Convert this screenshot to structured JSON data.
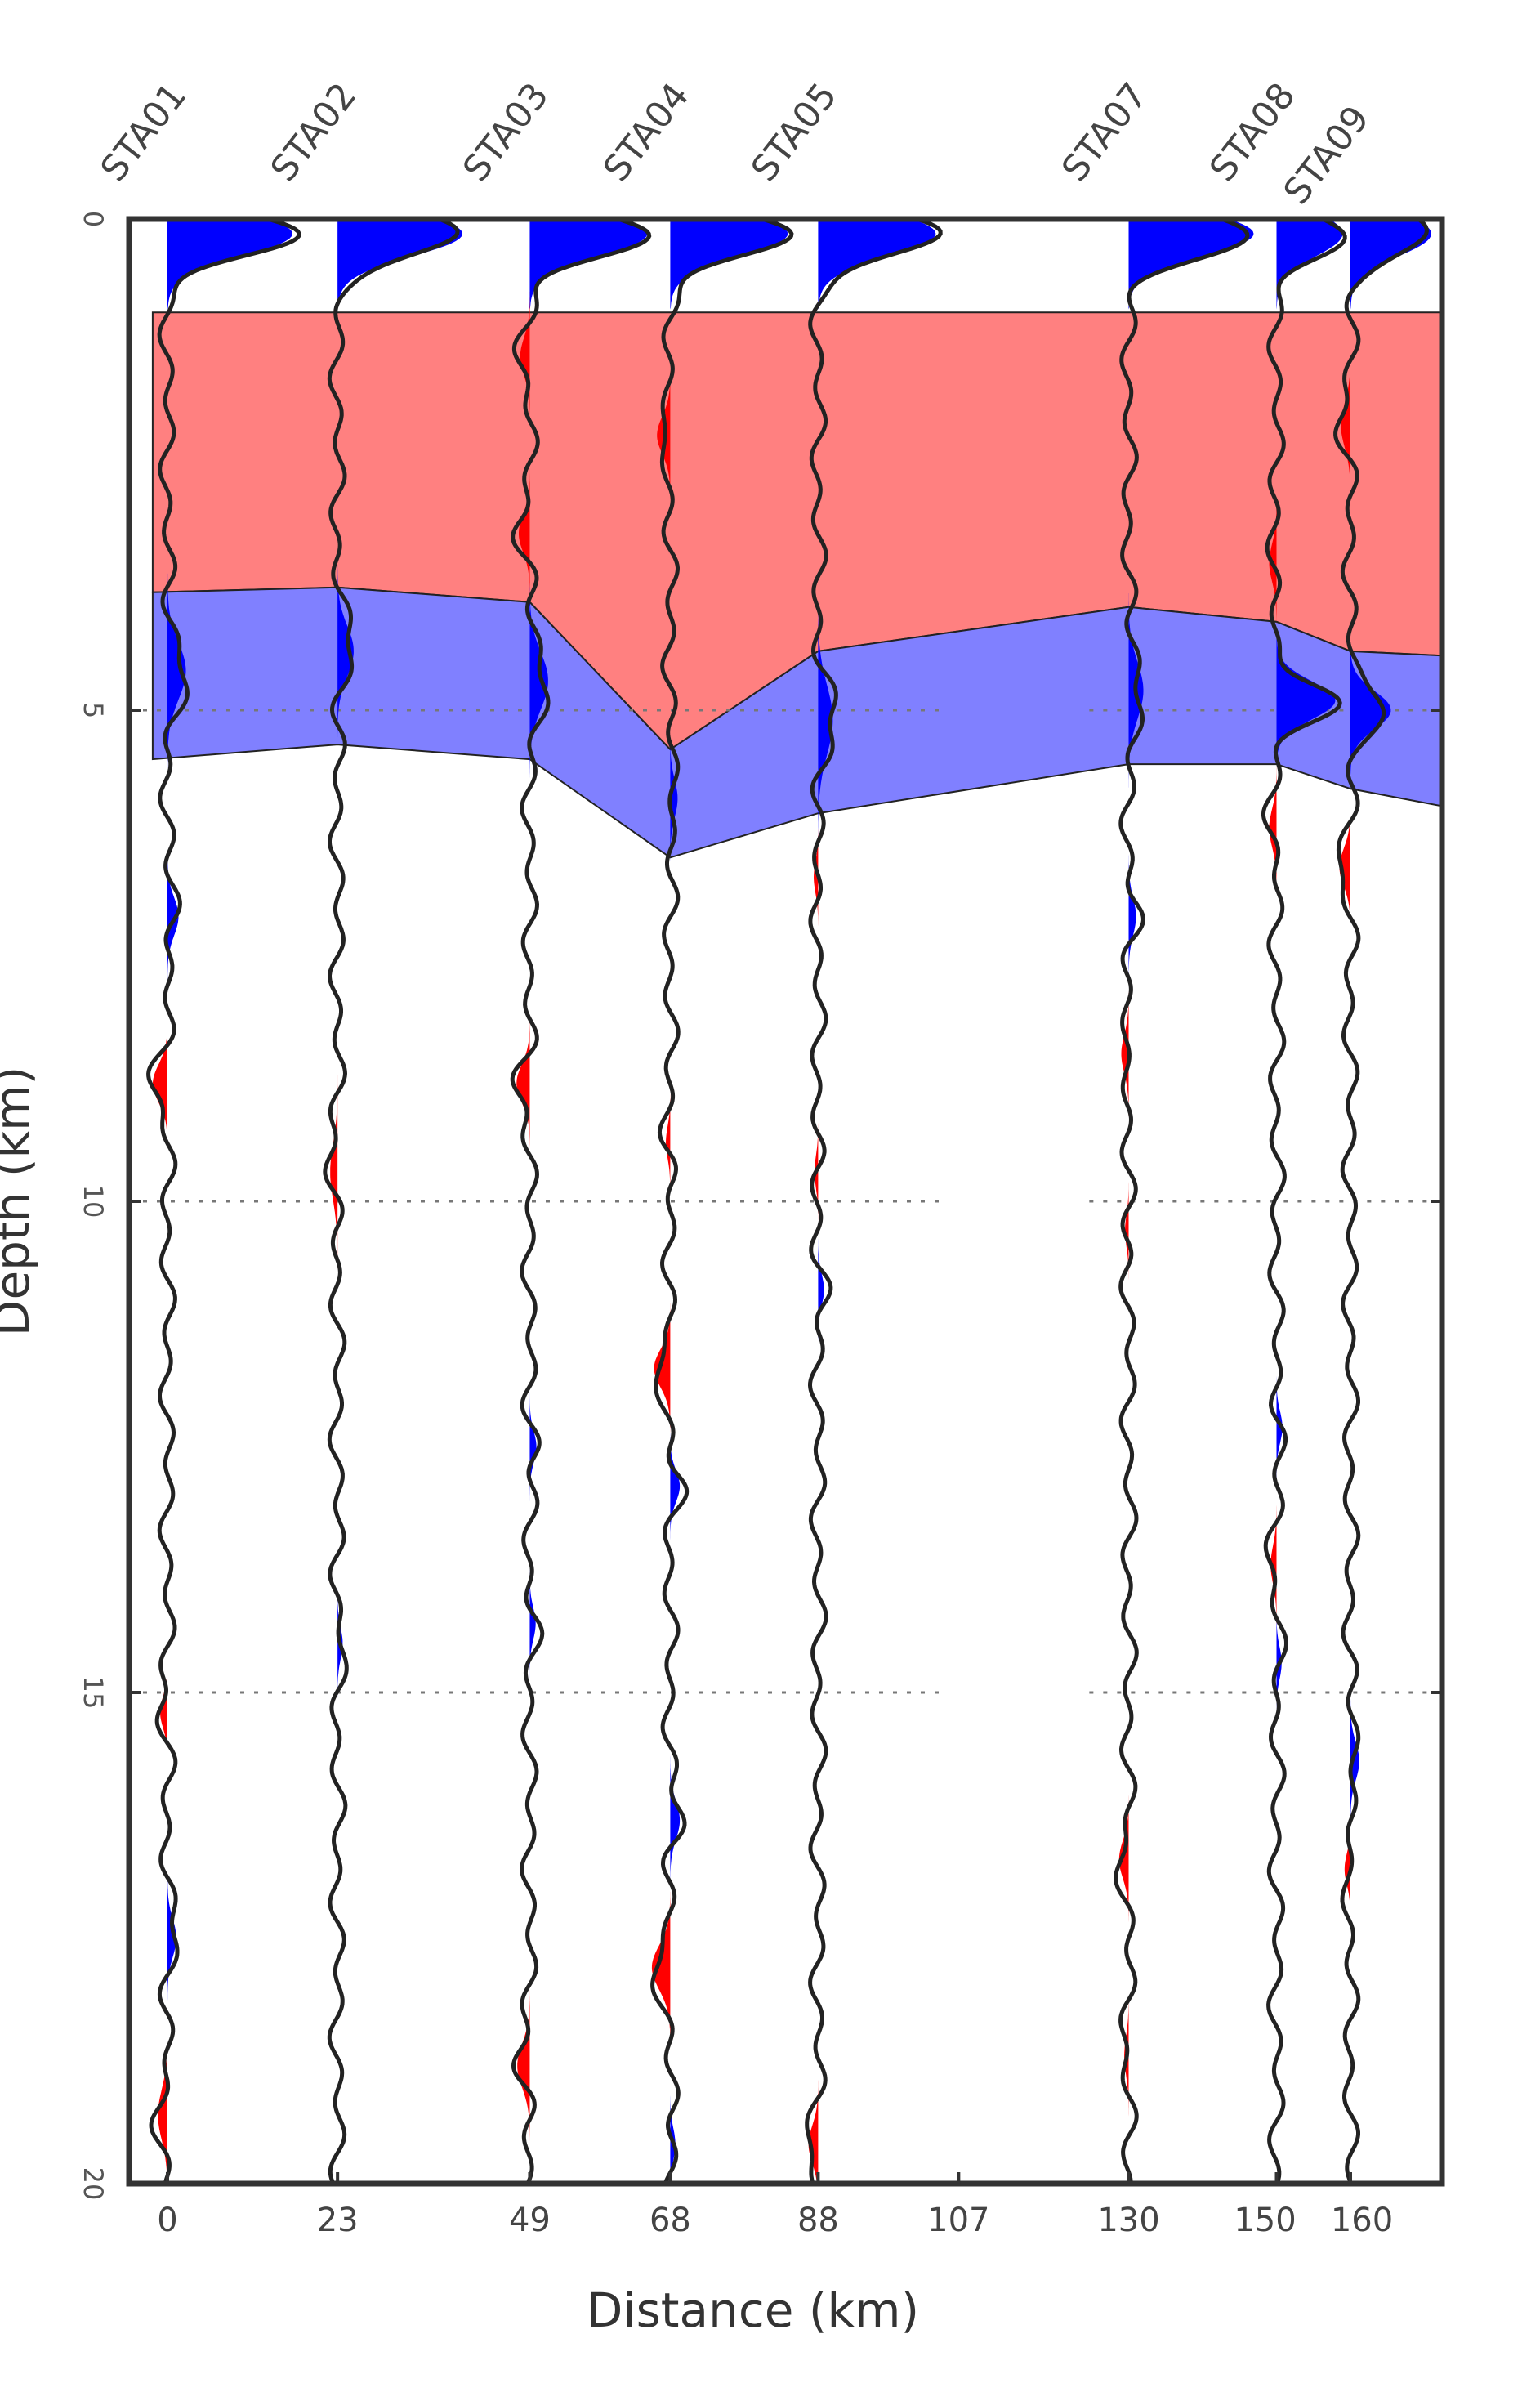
{
  "chart_data": {
    "type": "line",
    "title": "",
    "xlabel": "Distance (km)",
    "ylabel": "Depth (km)",
    "x_ticks": [
      0,
      23,
      49,
      68,
      88,
      107,
      130,
      150,
      160
    ],
    "y_ticks": [
      0,
      5,
      10,
      15,
      20
    ],
    "ylim": [
      0,
      20
    ],
    "y_inverted": true,
    "grid": "horizontal-dotted",
    "stations": [
      {
        "name": "STA01",
        "distance": 0
      },
      {
        "name": "STA02",
        "distance": 23
      },
      {
        "name": "STA03",
        "distance": 49
      },
      {
        "name": "STA04",
        "distance": 68
      },
      {
        "name": "STA05",
        "distance": 88
      },
      {
        "name": "STA07",
        "distance": 130
      },
      {
        "name": "STA08",
        "distance": 150
      },
      {
        "name": "STA09",
        "distance": 160
      }
    ],
    "empty_gap_distance": 107,
    "positive_color": "#0000ff",
    "negative_color": "#ff0000",
    "layers": [
      {
        "name": "",
        "fill": "#ff8080",
        "top": [
          [
            -2,
            0.95
          ],
          [
            188,
            0.95
          ]
        ],
        "bottom": [
          [
            -2,
            3.8
          ],
          [
            23,
            3.75
          ],
          [
            49,
            3.9
          ],
          [
            68,
            5.4
          ],
          [
            88,
            4.4
          ],
          [
            130,
            3.95
          ],
          [
            150,
            4.1
          ],
          [
            160,
            4.4
          ],
          [
            188,
            4.5
          ]
        ]
      },
      {
        "name": "",
        "fill": "#8080ff",
        "top": [
          [
            -2,
            3.8
          ],
          [
            23,
            3.75
          ],
          [
            49,
            3.9
          ],
          [
            68,
            5.4
          ],
          [
            88,
            4.4
          ],
          [
            130,
            3.95
          ],
          [
            150,
            4.1
          ],
          [
            160,
            4.4
          ],
          [
            188,
            4.5
          ]
        ],
        "bottom": [
          [
            -2,
            5.5
          ],
          [
            23,
            5.35
          ],
          [
            49,
            5.5
          ],
          [
            68,
            6.5
          ],
          [
            88,
            6.05
          ],
          [
            130,
            5.55
          ],
          [
            150,
            5.55
          ],
          [
            160,
            5.8
          ],
          [
            188,
            6.2
          ]
        ]
      }
    ],
    "pulses": [
      {
        "station": "STA01",
        "depth": 0.15,
        "amp": 17,
        "width": 0.7
      },
      {
        "station": "STA01",
        "depth": 4.6,
        "amp": 2.5,
        "width": 0.9
      },
      {
        "station": "STA01",
        "depth": 7.1,
        "amp": 1.5,
        "width": 0.6
      },
      {
        "station": "STA01",
        "depth": 8.8,
        "amp": -2,
        "width": 0.6
      },
      {
        "station": "STA01",
        "depth": 15.2,
        "amp": -1,
        "width": 0.5
      },
      {
        "station": "STA01",
        "depth": 17.5,
        "amp": 1.2,
        "width": 0.6
      },
      {
        "station": "STA01",
        "depth": 19.3,
        "amp": -1.3,
        "width": 0.8
      },
      {
        "station": "STA02",
        "depth": 0.15,
        "amp": 17,
        "width": 0.7
      },
      {
        "station": "STA02",
        "depth": 4.4,
        "amp": 2.2,
        "width": 0.8
      },
      {
        "station": "STA02",
        "depth": 9.7,
        "amp": -1,
        "width": 0.9
      },
      {
        "station": "STA02",
        "depth": 14.5,
        "amp": 0.7,
        "width": 0.5
      },
      {
        "station": "STA03",
        "depth": 0.15,
        "amp": 16,
        "width": 0.7
      },
      {
        "station": "STA03",
        "depth": 1.4,
        "amp": -1.3,
        "width": 0.6
      },
      {
        "station": "STA03",
        "depth": 3.2,
        "amp": -1.5,
        "width": 0.6
      },
      {
        "station": "STA03",
        "depth": 4.7,
        "amp": 2.5,
        "width": 0.9
      },
      {
        "station": "STA03",
        "depth": 8.8,
        "amp": -1.8,
        "width": 0.6
      },
      {
        "station": "STA03",
        "depth": 12.5,
        "amp": 0.9,
        "width": 0.5
      },
      {
        "station": "STA03",
        "depth": 14.3,
        "amp": 0.8,
        "width": 0.5
      },
      {
        "station": "STA03",
        "depth": 18.8,
        "amp": -1.7,
        "width": 0.7
      },
      {
        "station": "STA04",
        "depth": 0.15,
        "amp": 16,
        "width": 0.7
      },
      {
        "station": "STA04",
        "depth": 2.2,
        "amp": -1.8,
        "width": 0.6
      },
      {
        "station": "STA04",
        "depth": 5.9,
        "amp": 1,
        "width": 0.6
      },
      {
        "station": "STA04",
        "depth": 9.4,
        "amp": -0.6,
        "width": 0.5
      },
      {
        "station": "STA04",
        "depth": 11.7,
        "amp": -2.2,
        "width": 0.6
      },
      {
        "station": "STA04",
        "depth": 12.9,
        "amp": 1.3,
        "width": 0.5
      },
      {
        "station": "STA04",
        "depth": 16.3,
        "amp": 1.3,
        "width": 0.6
      },
      {
        "station": "STA04",
        "depth": 17.8,
        "amp": -2.5,
        "width": 0.7
      },
      {
        "station": "STA04",
        "depth": 19.6,
        "amp": 0.7,
        "width": 0.5
      },
      {
        "station": "STA05",
        "depth": 0.15,
        "amp": 16,
        "width": 0.7
      },
      {
        "station": "STA05",
        "depth": 5.1,
        "amp": 2,
        "width": 1.1
      },
      {
        "station": "STA05",
        "depth": 6.7,
        "amp": -0.6,
        "width": 0.5
      },
      {
        "station": "STA05",
        "depth": 9.7,
        "amp": -0.5,
        "width": 0.5
      },
      {
        "station": "STA05",
        "depth": 10.9,
        "amp": 0.8,
        "width": 0.5
      },
      {
        "station": "STA05",
        "depth": 19.6,
        "amp": -1.3,
        "width": 0.6
      },
      {
        "station": "STA07",
        "depth": 0.15,
        "amp": 17,
        "width": 0.7
      },
      {
        "station": "STA07",
        "depth": 4.8,
        "amp": 2,
        "width": 0.9
      },
      {
        "station": "STA07",
        "depth": 7.1,
        "amp": 1,
        "width": 0.6
      },
      {
        "station": "STA07",
        "depth": 8.5,
        "amp": -1,
        "width": 0.6
      },
      {
        "station": "STA07",
        "depth": 10.3,
        "amp": -0.5,
        "width": 0.5
      },
      {
        "station": "STA07",
        "depth": 16.7,
        "amp": -1.3,
        "width": 0.6
      },
      {
        "station": "STA07",
        "depth": 18.7,
        "amp": -0.6,
        "width": 0.6
      },
      {
        "station": "STA08",
        "depth": 0.15,
        "amp": 9,
        "width": 0.7
      },
      {
        "station": "STA08",
        "depth": 3.5,
        "amp": -1,
        "width": 0.6
      },
      {
        "station": "STA08",
        "depth": 4.9,
        "amp": 8,
        "width": 0.6
      },
      {
        "station": "STA08",
        "depth": 6.2,
        "amp": -1,
        "width": 0.6
      },
      {
        "station": "STA08",
        "depth": 12.3,
        "amp": 0.8,
        "width": 0.5
      },
      {
        "station": "STA08",
        "depth": 13.7,
        "amp": -0.8,
        "width": 0.6
      },
      {
        "station": "STA08",
        "depth": 14.7,
        "amp": 0.7,
        "width": 0.5
      },
      {
        "station": "STA09",
        "depth": 0.15,
        "amp": 11,
        "width": 0.7
      },
      {
        "station": "STA09",
        "depth": 2.1,
        "amp": -1.3,
        "width": 0.7
      },
      {
        "station": "STA09",
        "depth": 5.0,
        "amp": 5.5,
        "width": 0.6
      },
      {
        "station": "STA09",
        "depth": 6.6,
        "amp": -1.5,
        "width": 0.6
      },
      {
        "station": "STA09",
        "depth": 15.7,
        "amp": 1.2,
        "width": 0.6
      },
      {
        "station": "STA09",
        "depth": 16.8,
        "amp": -0.8,
        "width": 0.5
      }
    ]
  }
}
